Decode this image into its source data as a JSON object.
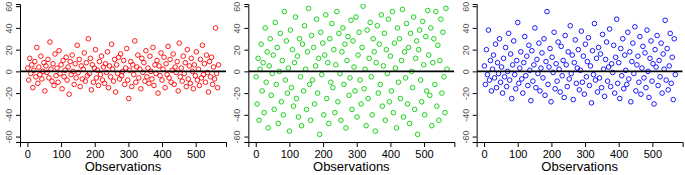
{
  "chart_data": [
    {
      "type": "scatter",
      "x_label": "Observations",
      "color": "#ff0000",
      "marker": "circle",
      "hline": 0,
      "xlim": [
        -22,
        590
      ],
      "xticks": [
        0,
        100,
        200,
        300,
        400,
        500
      ],
      "ylim": [
        -65,
        62
      ],
      "yticks": [
        -60,
        -40,
        -20,
        0,
        20,
        40,
        60
      ],
      "x": [
        1,
        4,
        7,
        10,
        13,
        16,
        19,
        22,
        25,
        28,
        31,
        34,
        37,
        40,
        43,
        46,
        49,
        52,
        55,
        58,
        61,
        64,
        67,
        70,
        73,
        76,
        79,
        82,
        85,
        88,
        91,
        94,
        97,
        100,
        103,
        106,
        109,
        112,
        115,
        118,
        121,
        124,
        127,
        130,
        133,
        136,
        139,
        142,
        145,
        148,
        151,
        154,
        157,
        160,
        163,
        166,
        169,
        172,
        175,
        178,
        181,
        184,
        187,
        190,
        193,
        196,
        199,
        202,
        205,
        208,
        211,
        214,
        217,
        220,
        223,
        226,
        229,
        232,
        235,
        238,
        241,
        244,
        247,
        250,
        253,
        256,
        259,
        262,
        265,
        268,
        271,
        274,
        277,
        280,
        283,
        286,
        289,
        292,
        295,
        298,
        301,
        304,
        307,
        310,
        313,
        316,
        319,
        322,
        325,
        328,
        331,
        334,
        337,
        340,
        343,
        346,
        349,
        352,
        355,
        358,
        361,
        364,
        367,
        370,
        373,
        376,
        379,
        382,
        385,
        388,
        391,
        394,
        397,
        400,
        403,
        406,
        409,
        412,
        415,
        418,
        421,
        424,
        427,
        430,
        433,
        436,
        439,
        442,
        445,
        448,
        451,
        454,
        457,
        460,
        463,
        466,
        469,
        472,
        475,
        478,
        481,
        484,
        487,
        490,
        493,
        496,
        499,
        502,
        505,
        508,
        511,
        514,
        517,
        520,
        523,
        526,
        529,
        532,
        535,
        538,
        541,
        544,
        547,
        550,
        553,
        556,
        559,
        562,
        565,
        568
      ],
      "values": [
        3,
        -8,
        12,
        -2,
        6,
        -15,
        1,
        9,
        -5,
        22,
        -11,
        4,
        -3,
        14,
        -7,
        0,
        8,
        -18,
        5,
        -1,
        11,
        -6,
        27,
        2,
        -9,
        7,
        -13,
        16,
        -4,
        3,
        -10,
        19,
        -2,
        6,
        -16,
        10,
        -5,
        1,
        13,
        -8,
        4,
        -21,
        9,
        -3,
        15,
        0,
        -12,
        7,
        -6,
        24,
        -1,
        11,
        -14,
        5,
        -7,
        2,
        17,
        -9,
        8,
        -4,
        30,
        -2,
        12,
        -17,
        6,
        -10,
        3,
        20,
        -6,
        1,
        -13,
        9,
        -3,
        14,
        -8,
        4,
        -11,
        7,
        -1,
        18,
        -15,
        5,
        -5,
        25,
        2,
        -9,
        11,
        -19,
        6,
        -2,
        13,
        -7,
        16,
        -4,
        0,
        10,
        -12,
        3,
        21,
        -8,
        -25,
        1,
        9,
        -14,
        6,
        -3,
        28,
        -10,
        4,
        15,
        -6,
        2,
        -16,
        12,
        -1,
        8,
        -9,
        19,
        -5,
        3,
        -11,
        14,
        0,
        -7,
        22,
        -13,
        6,
        -2,
        10,
        -20,
        5,
        -4,
        17,
        -8,
        2,
        13,
        -15,
        7,
        -3,
        23,
        -6,
        11,
        -10,
        1,
        16,
        -12,
        4,
        -1,
        9,
        -18,
        26,
        -5,
        3,
        -9,
        14,
        -2,
        8,
        -14,
        20,
        -7,
        5,
        -11,
        12,
        0,
        -16,
        6,
        -4,
        18,
        -8,
        2,
        -13,
        11,
        -6,
        24,
        -3,
        7,
        -10,
        15,
        -1,
        -19,
        9,
        -5,
        13,
        -12,
        4,
        -7,
        40,
        -2,
        -15,
        6
      ]
    },
    {
      "type": "scatter",
      "x_label": "Observations",
      "color": "#00cd00",
      "marker": "circle",
      "hline": 0,
      "xlim": [
        -22,
        590
      ],
      "xticks": [
        0,
        100,
        200,
        300,
        400,
        500
      ],
      "ylim": [
        -65,
        62
      ],
      "yticks": [
        -60,
        -40,
        -20,
        0,
        20,
        40,
        60
      ],
      "x": [
        1,
        4,
        7,
        10,
        13,
        16,
        19,
        22,
        25,
        28,
        31,
        34,
        37,
        40,
        43,
        46,
        49,
        52,
        55,
        58,
        61,
        64,
        67,
        70,
        73,
        76,
        79,
        82,
        85,
        88,
        91,
        94,
        97,
        100,
        103,
        106,
        109,
        112,
        115,
        118,
        121,
        124,
        127,
        130,
        133,
        136,
        139,
        142,
        145,
        148,
        151,
        154,
        157,
        160,
        163,
        166,
        169,
        172,
        175,
        178,
        181,
        184,
        187,
        190,
        193,
        196,
        199,
        202,
        205,
        208,
        211,
        214,
        217,
        220,
        223,
        226,
        229,
        232,
        235,
        238,
        241,
        244,
        247,
        250,
        253,
        256,
        259,
        262,
        265,
        268,
        271,
        274,
        277,
        280,
        283,
        286,
        289,
        292,
        295,
        298,
        301,
        304,
        307,
        310,
        313,
        316,
        319,
        322,
        325,
        328,
        331,
        334,
        337,
        340,
        343,
        346,
        349,
        352,
        355,
        358,
        361,
        364,
        367,
        370,
        373,
        376,
        379,
        382,
        385,
        388,
        391,
        394,
        397,
        400,
        403,
        406,
        409,
        412,
        415,
        418,
        421,
        424,
        427,
        430,
        433,
        436,
        439,
        442,
        445,
        448,
        451,
        454,
        457,
        460,
        463,
        466,
        469,
        472,
        475,
        478,
        481,
        484,
        487,
        490,
        493,
        496,
        499,
        502,
        505,
        508,
        511,
        514,
        517,
        520,
        523,
        526,
        529,
        532,
        535,
        538,
        541,
        544,
        547,
        550,
        553,
        556,
        559,
        562,
        565,
        568
      ],
      "values": [
        -5,
        -30,
        12,
        -45,
        2,
        25,
        -18,
        8,
        -38,
        40,
        -10,
        18,
        -52,
        5,
        30,
        -22,
        -2,
        15,
        -35,
        45,
        -12,
        22,
        -48,
        0,
        35,
        -28,
        10,
        -40,
        55,
        -8,
        28,
        -20,
        3,
        -55,
        38,
        -15,
        20,
        -32,
        8,
        50,
        -25,
        14,
        -42,
        30,
        -5,
        -50,
        25,
        -18,
        42,
        2,
        -35,
        18,
        58,
        -12,
        -45,
        33,
        -8,
        22,
        -30,
        5,
        48,
        -20,
        12,
        -58,
        36,
        -3,
        26,
        -40,
        15,
        52,
        -25,
        8,
        -48,
        30,
        -10,
        44,
        -15,
        20,
        -38,
        6,
        55,
        -28,
        35,
        -2,
        -45,
        18,
        40,
        -12,
        25,
        -52,
        10,
        32,
        -22,
        -6,
        47,
        -35,
        28,
        4,
        -18,
        50,
        -42,
        15,
        36,
        -8,
        -30,
        22,
        60,
        -16,
        2,
        -50,
        38,
        -25,
        12,
        45,
        -5,
        -40,
        30,
        18,
        -55,
        8,
        42,
        -20,
        25,
        -12,
        52,
        -32,
        5,
        35,
        -45,
        20,
        -2,
        48,
        -28,
        14,
        -18,
        55,
        -38,
        26,
        3,
        -52,
        40,
        -10,
        30,
        -25,
        10,
        57,
        -42,
        18,
        -6,
        44,
        -30,
        22,
        -48,
        35,
        0,
        -15,
        50,
        -35,
        12,
        28,
        -58,
        20,
        38,
        -8,
        -28,
        46,
        6,
        -40,
        32,
        -18,
        56,
        15,
        -22,
        40,
        -50,
        8,
        30,
        -12,
        55,
        -32,
        24,
        -45,
        10,
        48,
        -20,
        36,
        -5,
        -38,
        58,
        2
      ]
    },
    {
      "type": "scatter",
      "x_label": "Observations",
      "color": "#0000ff",
      "marker": "circle",
      "hline": 0,
      "xlim": [
        -22,
        590
      ],
      "xticks": [
        0,
        100,
        200,
        300,
        400,
        500
      ],
      "ylim": [
        -65,
        62
      ],
      "yticks": [
        -60,
        -40,
        -20,
        0,
        20,
        40,
        60
      ],
      "x": [
        1,
        4,
        7,
        10,
        13,
        16,
        19,
        22,
        25,
        28,
        31,
        34,
        37,
        40,
        43,
        46,
        49,
        52,
        55,
        58,
        61,
        64,
        67,
        70,
        73,
        76,
        79,
        82,
        85,
        88,
        91,
        94,
        97,
        100,
        103,
        106,
        109,
        112,
        115,
        118,
        121,
        124,
        127,
        130,
        133,
        136,
        139,
        142,
        145,
        148,
        151,
        154,
        157,
        160,
        163,
        166,
        169,
        172,
        175,
        178,
        181,
        184,
        187,
        190,
        193,
        196,
        199,
        202,
        205,
        208,
        211,
        214,
        217,
        220,
        223,
        226,
        229,
        232,
        235,
        238,
        241,
        244,
        247,
        250,
        253,
        256,
        259,
        262,
        265,
        268,
        271,
        274,
        277,
        280,
        283,
        286,
        289,
        292,
        295,
        298,
        301,
        304,
        307,
        310,
        313,
        316,
        319,
        322,
        325,
        328,
        331,
        334,
        337,
        340,
        343,
        346,
        349,
        352,
        355,
        358,
        361,
        364,
        367,
        370,
        373,
        376,
        379,
        382,
        385,
        388,
        391,
        394,
        397,
        400,
        403,
        406,
        409,
        412,
        415,
        418,
        421,
        424,
        427,
        430,
        433,
        436,
        439,
        442,
        445,
        448,
        451,
        454,
        457,
        460,
        463,
        466,
        469,
        472,
        475,
        478,
        481,
        484,
        487,
        490,
        493,
        496,
        499,
        502,
        505,
        508,
        511,
        514,
        517,
        520,
        523,
        526,
        529,
        532,
        535,
        538,
        541,
        544,
        547,
        550,
        553,
        556,
        559,
        562,
        565,
        568
      ],
      "values": [
        5,
        -12,
        20,
        -3,
        38,
        -8,
        10,
        -18,
        2,
        15,
        -6,
        25,
        -15,
        8,
        -2,
        30,
        -10,
        4,
        -20,
        12,
        -5,
        22,
        -14,
        0,
        35,
        -8,
        16,
        -25,
        6,
        28,
        -3,
        -16,
        10,
        45,
        -11,
        3,
        18,
        -7,
        -20,
        8,
        32,
        -4,
        14,
        -13,
        24,
        1,
        -27,
        19,
        -9,
        6,
        40,
        -15,
        11,
        -2,
        26,
        -18,
        3,
        17,
        -6,
        30,
        -22,
        9,
        55,
        -12,
        4,
        21,
        -28,
        13,
        -1,
        36,
        -16,
        7,
        -9,
        27,
        2,
        -19,
        23,
        -4,
        10,
        -24,
        33,
        6,
        -14,
        18,
        -7,
        42,
        -2,
        15,
        -26,
        8,
        29,
        -11,
        3,
        20,
        -17,
        1,
        37,
        -10,
        14,
        -21,
        25,
        -5,
        9,
        31,
        -13,
        5,
        -29,
        19,
        -3,
        44,
        -8,
        12,
        -19,
        22,
        -6,
        16,
        -15,
        34,
        2,
        -23,
        11,
        27,
        -9,
        4,
        39,
        -14,
        7,
        -1,
        24,
        -20,
        13,
        48,
        -11,
        8,
        -25,
        21,
        -4,
        30,
        -16,
        15,
        1,
        -12,
        36,
        -7,
        18,
        -28,
        9,
        26,
        -2,
        41,
        -18,
        6,
        14,
        -10,
        32,
        -21,
        3,
        23,
        -6,
        17,
        -15,
        38,
        0,
        -24,
        12,
        28,
        -9,
        7,
        -30,
        20,
        4,
        33,
        -13,
        10,
        -5,
        26,
        -20,
        16,
        2,
        47,
        -8,
        21,
        -17,
        5,
        35,
        -11,
        13,
        -26,
        30,
        -3
      ]
    }
  ]
}
